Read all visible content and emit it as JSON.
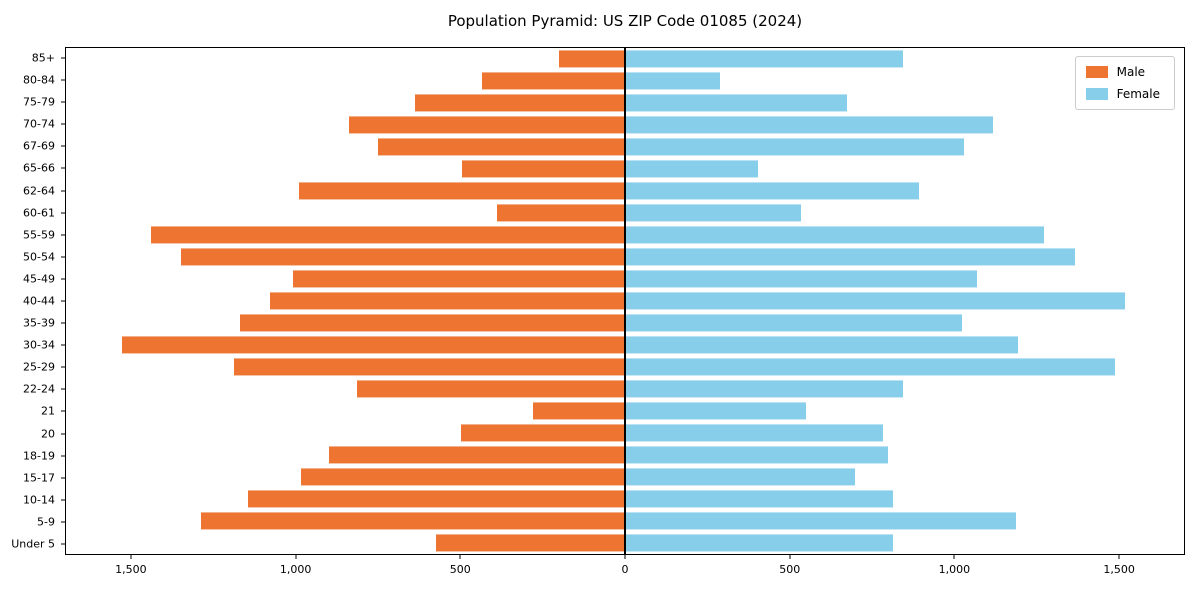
{
  "title": "Population Pyramid: US ZIP Code 01085 (2024)",
  "colors": {
    "male": "#ED7431",
    "female": "#87CEEB",
    "axis": "#000000",
    "legend_border": "#cccccc",
    "background": "#ffffff"
  },
  "chart_data": {
    "type": "bar",
    "subtype": "population-pyramid",
    "orientation": "horizontal",
    "title": "Population Pyramid: US ZIP Code 01085 (2024)",
    "xlabel": "",
    "ylabel": "",
    "grid": false,
    "legend_position": "upper right",
    "categories_order": "top-to-bottom",
    "categories": [
      "85+",
      "80-84",
      "75-79",
      "70-74",
      "67-69",
      "65-66",
      "62-64",
      "60-61",
      "55-59",
      "50-54",
      "45-49",
      "40-44",
      "35-39",
      "30-34",
      "25-29",
      "22-24",
      "21",
      "20",
      "18-19",
      "15-17",
      "10-14",
      "5-9",
      "Under 5"
    ],
    "series": [
      {
        "name": "Male",
        "side": "left",
        "color": "#ED7431",
        "values": [
          200,
          435,
          640,
          840,
          750,
          495,
          990,
          390,
          1440,
          1350,
          1010,
          1080,
          1170,
          1530,
          1190,
          815,
          280,
          500,
          900,
          985,
          1145,
          1290,
          575
        ]
      },
      {
        "name": "Female",
        "side": "right",
        "color": "#87CEEB",
        "values": [
          845,
          290,
          675,
          1120,
          1030,
          405,
          895,
          535,
          1275,
          1370,
          1070,
          1520,
          1025,
          1195,
          1490,
          845,
          550,
          785,
          800,
          700,
          815,
          1190,
          815
        ]
      }
    ],
    "xlim": [
      -1700,
      1700
    ],
    "xticks": [
      -1500,
      -1000,
      -500,
      0,
      500,
      1000,
      1500
    ],
    "xtick_labels": [
      "1,500",
      "1,000",
      "500",
      "0",
      "500",
      "1,000",
      "1,500"
    ],
    "bar_fraction": 0.78
  }
}
